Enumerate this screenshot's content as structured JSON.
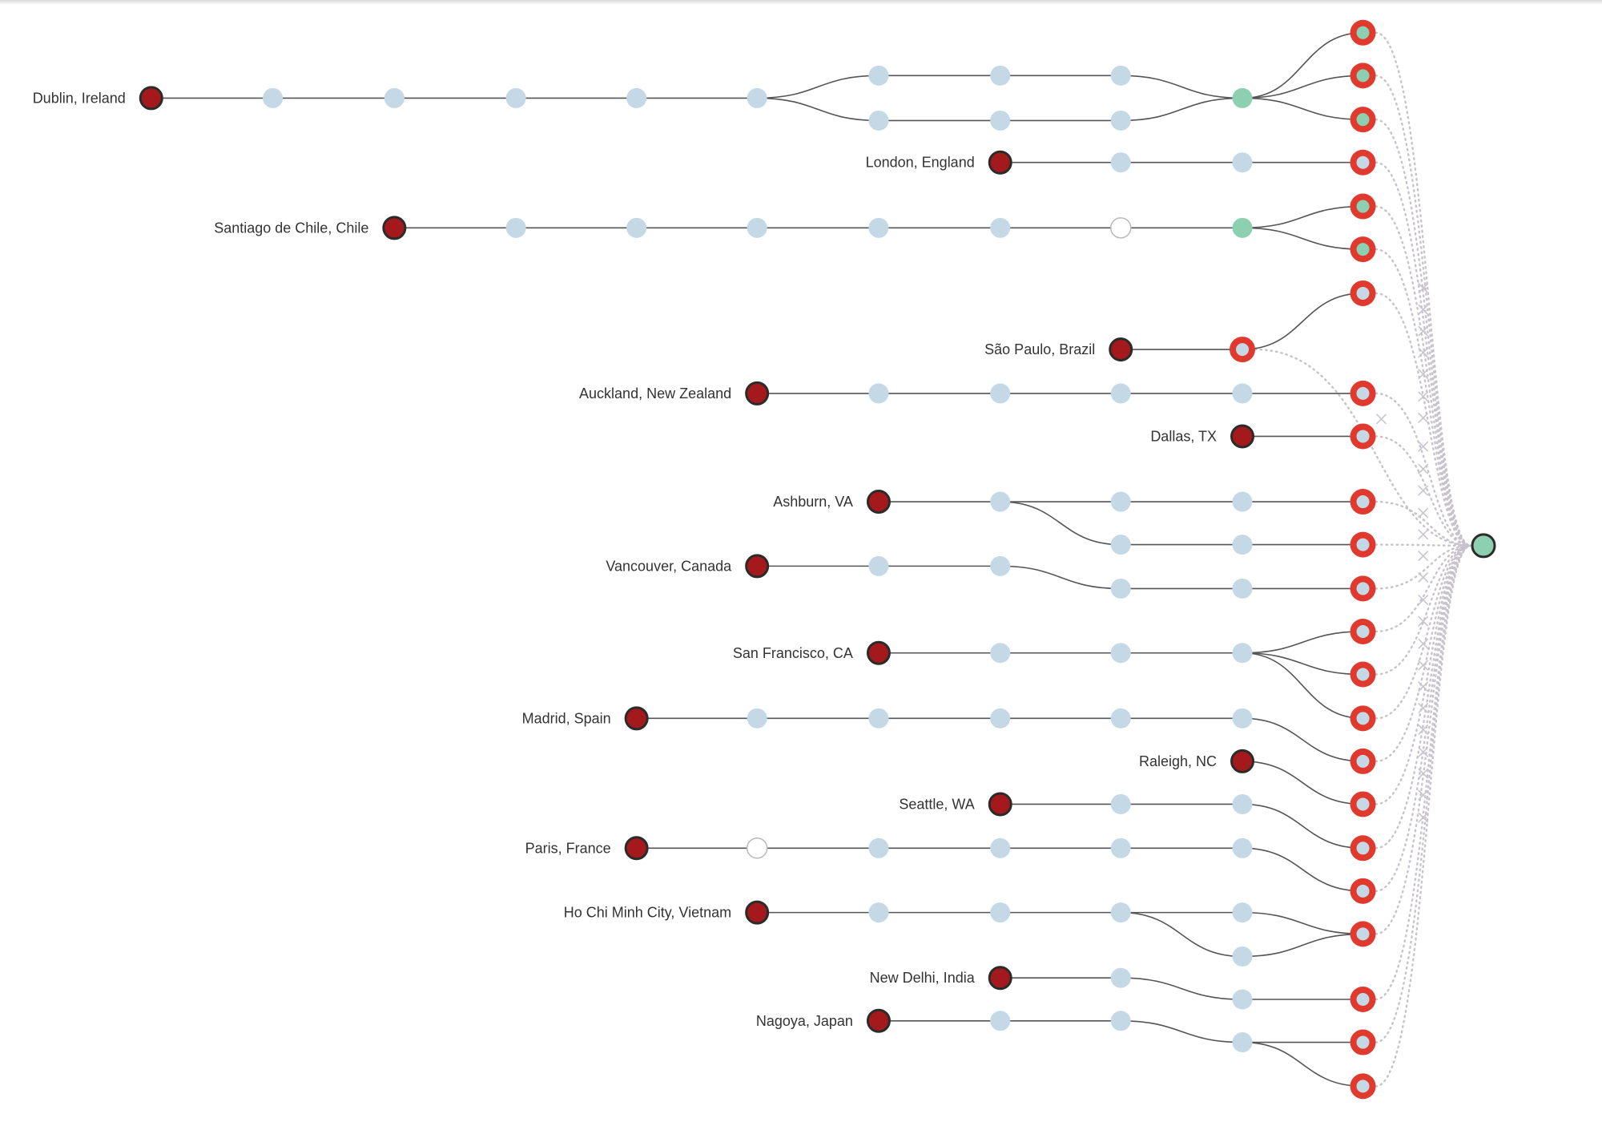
{
  "colors": {
    "background": "#ffffff",
    "edge": "#555555",
    "origin_fill": "#a3191c",
    "origin_stroke": "#2b2b2b",
    "hop_fill": "#c5d8e6",
    "unknown_fill": "#ffffff",
    "unknown_stroke": "#b8b8b8",
    "green_fill": "#8ccfb1",
    "end_ring": "#e03a2e",
    "end_center": "#c5d8e6",
    "target_fill": "#8ccfb1",
    "target_stroke": "#2b2b2b",
    "dotted": "#c7c2cc",
    "fail_mark": "#c9c4cf"
  },
  "node_types": {
    "origin": "filled dark red circle",
    "hop": "light blue circle",
    "unknown_hop": "white circle with grey outline",
    "green_hop": "green circle",
    "endpoint": "red ring",
    "failed": "x-mark",
    "destination": "green circle with dark outline"
  },
  "origins": [
    {
      "label": "Dublin, Ireland",
      "col": 0,
      "row": 96,
      "trunk": [
        "hop",
        "hop",
        "hop",
        "hop",
        "hop"
      ],
      "branches": [
        {
          "row": 74,
          "hops": [
            "hop",
            "hop",
            "hop"
          ],
          "join": true
        },
        {
          "row": 118,
          "hops": [
            "hop",
            "hop",
            "hop"
          ],
          "join": true
        }
      ],
      "merge_hop": "green",
      "ends": [
        {
          "row": 32,
          "center": "green"
        },
        {
          "row": 74,
          "center": "green"
        },
        {
          "row": 117,
          "center": "green"
        }
      ]
    },
    {
      "label": "London, England",
      "col": 7,
      "row": 159,
      "trunk": [
        "hop",
        "hop"
      ],
      "ends": [
        {
          "row": 159,
          "center": "blue"
        }
      ]
    },
    {
      "label": "Santiago de Chile, Chile",
      "col": 2,
      "row": 223,
      "trunk": [
        "hop",
        "hop",
        "hop",
        "hop",
        "hop",
        "unknown",
        "green"
      ],
      "ends": [
        {
          "row": 202,
          "center": "green"
        },
        {
          "row": 244,
          "center": "green"
        }
      ]
    },
    {
      "label": "São Paulo, Brazil",
      "col": 8,
      "row": 342,
      "trunk": [
        "endpoint"
      ],
      "ends": [
        {
          "row": 287,
          "center": "blue"
        }
      ]
    },
    {
      "label": "Auckland, New Zealand",
      "col": 5,
      "row": 385,
      "trunk": [
        "hop",
        "hop",
        "hop",
        "hop"
      ],
      "ends": [
        {
          "row": 385,
          "center": "blue"
        }
      ]
    },
    {
      "label": "Dallas, TX",
      "col": 9,
      "row": 427,
      "trunk": [],
      "ends": [
        {
          "row": 427,
          "center": "blue"
        }
      ]
    },
    {
      "label": "Ashburn, VA",
      "col": 6,
      "row": 491,
      "trunk": [
        "hop"
      ],
      "split_rows": [
        491,
        533
      ],
      "ends": [
        {
          "row": 491,
          "center": "blue"
        },
        {
          "row": 533,
          "center": "blue"
        }
      ]
    },
    {
      "label": "Vancouver, Canada",
      "col": 5,
      "row": 554,
      "trunk": [
        "hop",
        "hop"
      ],
      "shift_row": 576,
      "ends": [
        {
          "row": 576,
          "center": "blue"
        }
      ]
    },
    {
      "label": "San Francisco, CA",
      "col": 6,
      "row": 639,
      "trunk": [
        "hop",
        "hop",
        "hop"
      ],
      "ends": [
        {
          "row": 618,
          "center": "blue"
        },
        {
          "row": 660,
          "center": "blue"
        },
        {
          "row": 703,
          "center": "blue"
        }
      ]
    },
    {
      "label": "Madrid, Spain",
      "col": 4,
      "row": 703,
      "trunk": [
        "hop",
        "hop",
        "hop",
        "hop",
        "hop"
      ],
      "ends": [
        {
          "row": 745,
          "center": "blue"
        }
      ]
    },
    {
      "label": "Raleigh, NC",
      "col": 9,
      "row": 745,
      "trunk": [],
      "ends": [
        {
          "row": 787,
          "center": "blue"
        }
      ]
    },
    {
      "label": "Seattle, WA",
      "col": 7,
      "row": 787,
      "trunk": [
        "hop",
        "hop"
      ],
      "ends": [
        {
          "row": 830,
          "center": "blue"
        }
      ]
    },
    {
      "label": "Paris, France",
      "col": 4,
      "row": 830,
      "trunk": [
        "unknown",
        "hop",
        "hop",
        "hop",
        "hop"
      ],
      "ends": [
        {
          "row": 872,
          "center": "blue"
        }
      ]
    },
    {
      "label": "Ho Chi Minh City, Vietnam",
      "col": 5,
      "row": 893,
      "trunk": [
        "hop",
        "hop",
        "hop"
      ],
      "split_rows": [
        893,
        936
      ],
      "ends": [
        {
          "row": 914,
          "center": "blue"
        }
      ]
    },
    {
      "label": "New Delhi, India",
      "col": 7,
      "row": 957,
      "trunk": [
        "hop"
      ],
      "shift_row": 978,
      "ends": [
        {
          "row": 978,
          "center": "blue"
        }
      ]
    },
    {
      "label": "Nagoya, Japan",
      "col": 6,
      "row": 999,
      "trunk": [
        "hop",
        "hop"
      ],
      "shift_row": 1020,
      "ends": [
        {
          "row": 1020,
          "center": "blue"
        },
        {
          "row": 1063,
          "center": "blue"
        }
      ]
    }
  ],
  "failed_marks_rows": [
    282,
    303,
    324,
    345,
    366,
    388,
    409,
    437,
    459,
    480,
    502,
    523,
    544,
    565,
    587,
    608,
    630,
    651,
    672,
    693,
    714,
    736,
    757,
    778,
    800
  ],
  "destination": {
    "row": 534
  }
}
